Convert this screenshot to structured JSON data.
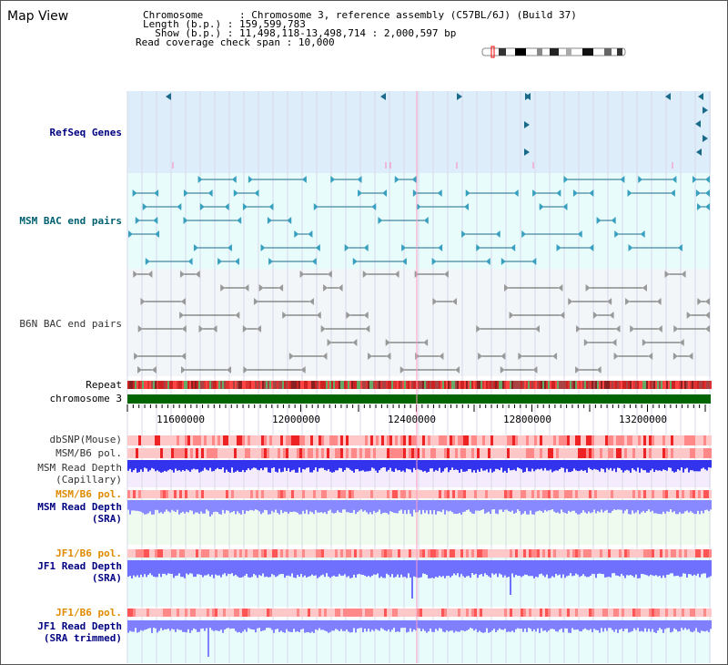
{
  "page_title": "Map View",
  "info": {
    "chromosome_key": "Chromosome",
    "chromosome_val": "Chromosome 3, reference assembly (C57BL/6J) (Build 37)",
    "length_key": "Length (b.p.)",
    "length_val": "159,599,783",
    "show_key": "Show (b.p.)",
    "show_val": "11,498,118-13,498,714 : 2,000,597 bp",
    "coverage_key": "Read coverage check span",
    "coverage_val": "10,000"
  },
  "tracks": {
    "refseq": "RefSeq Genes",
    "msm_bac": "MSM BAC end pairs",
    "b6n_bac": "B6N BAC end pairs",
    "repeat": "Repeat",
    "chromosome": "chromosome 3",
    "dbsnp": "dbSNP(Mouse)",
    "msm_b6_pol": "MSM/B6 pol.",
    "msm_read_depth_cap": "MSM Read Depth\n(Capillary)",
    "msm_b6_pol2": "MSM/B6 pol.",
    "msm_read_depth_sra": "MSM Read Depth\n(SRA)",
    "jf1_b6_pol": "JF1/B6 pol.",
    "jf1_read_depth_sra": "JF1 Read Depth\n(SRA)",
    "jf1_b6_pol2": "JF1/B6 pol.",
    "jf1_read_depth_trim": "JF1 Read Depth\n(SRA trimmed)"
  },
  "axis": {
    "ticks": [
      "11600000",
      "12000000",
      "12400000",
      "12800000",
      "13200000"
    ]
  },
  "colors": {
    "refseq_bg": "#ddeefa",
    "bac_bg": "#e8fcfc",
    "b6n_bg": "#f2f6f8",
    "label_navy": "#000080",
    "label_teal": "#006070",
    "label_orange": "#e08a00",
    "label_gray": "#333333",
    "chrom_green": "#006400",
    "depth_blue": "#2a2ae8",
    "depth_light": "#8080ff"
  }
}
